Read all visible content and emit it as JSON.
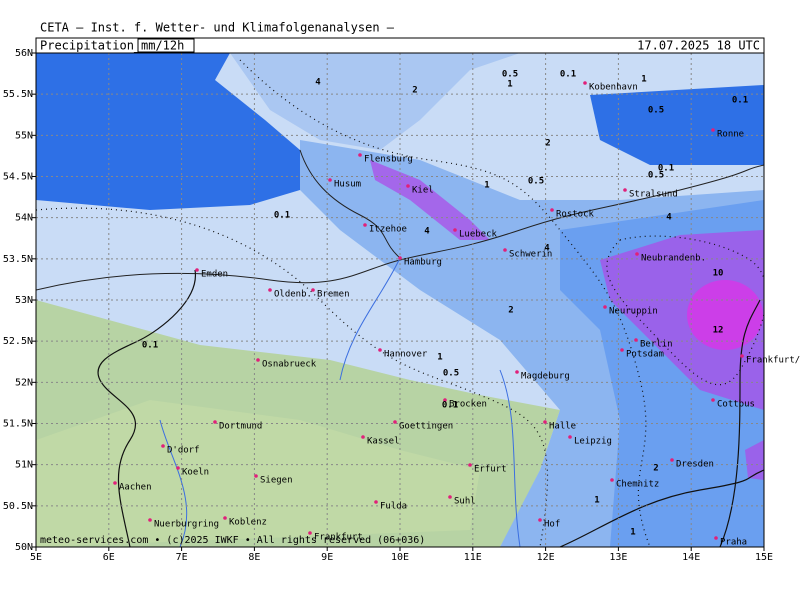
{
  "header": {
    "title": "CETA — Inst. f. Wetter- und Klimafolgenanalysen —",
    "field": "Precipitation_",
    "unit": "mm/12h",
    "datetime": "17.07.2025 18 UTC"
  },
  "map": {
    "xlim": [
      5,
      15
    ],
    "ylim": [
      50,
      56
    ],
    "xticks": [
      {
        "value": 5,
        "label": "5E"
      },
      {
        "value": 6,
        "label": "6E"
      },
      {
        "value": 7,
        "label": "7E"
      },
      {
        "value": 8,
        "label": "8E"
      },
      {
        "value": 9,
        "label": "9E"
      },
      {
        "value": 10,
        "label": "10E"
      },
      {
        "value": 11,
        "label": "11E"
      },
      {
        "value": 12,
        "label": "12E"
      },
      {
        "value": 13,
        "label": "13E"
      },
      {
        "value": 14,
        "label": "14E"
      },
      {
        "value": 15,
        "label": "15E"
      }
    ],
    "yticks": [
      {
        "value": 50,
        "label": "50N"
      },
      {
        "value": 50.5,
        "label": "50.5N"
      },
      {
        "value": 51,
        "label": "51N"
      },
      {
        "value": 51.5,
        "label": "51.5N"
      },
      {
        "value": 52,
        "label": "52N"
      },
      {
        "value": 52.5,
        "label": "52.5N"
      },
      {
        "value": 53,
        "label": "53N"
      },
      {
        "value": 53.5,
        "label": "53.5N"
      },
      {
        "value": 54,
        "label": "54N"
      },
      {
        "value": 54.5,
        "label": "54.5N"
      },
      {
        "value": 55,
        "label": "55N"
      },
      {
        "value": 55.5,
        "label": "55.5N"
      },
      {
        "value": 56,
        "label": "56N"
      }
    ],
    "cities": [
      "Kobenhavn",
      "Ronne",
      "Flensburg",
      "Husum",
      "Kiel",
      "Stralsund",
      "Rostock",
      "Itzehoe",
      "Luebeck",
      "Schwerin",
      "Hamburg",
      "Neubrandenb.",
      "Emden",
      "Oldenb.",
      "Bremen",
      "Neuruppin",
      "Berlin",
      "Potsdam",
      "Frankfurt/O.",
      "Hannover",
      "Osnabrueck",
      "Magdeburg",
      "Brocken",
      "Cottbus",
      "Dortmund",
      "Goettingen",
      "Halle",
      "Leipzig",
      "Kassel",
      "D'dorf",
      "Koeln",
      "Erfurt",
      "Dresden",
      "Siegen",
      "Aachen",
      "Chemnitz",
      "Fulda",
      "Suhl",
      "Hof",
      "Nuerburgring",
      "Koblenz",
      "Frankfurt",
      "Praha"
    ],
    "contour_labels": [
      "4",
      "2",
      "0.5",
      "1",
      "0.1",
      "1",
      "0.5",
      "0.1",
      "2",
      "0.1",
      "0.5",
      "0.5",
      "1",
      "4",
      "0.1",
      "4",
      "4",
      "10",
      "12",
      "2",
      "1",
      "0.5",
      "0.1",
      "0.1",
      "2",
      "1",
      "1"
    ]
  },
  "footer": "meteo-services.com • (c)2025 IWKF • All rights reserved (06+036)"
}
